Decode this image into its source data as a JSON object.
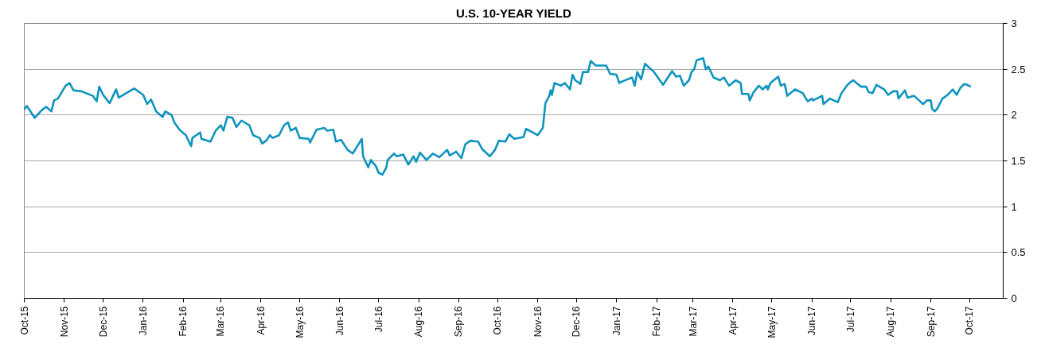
{
  "chart_data": {
    "type": "line",
    "title": "U.S. 10-YEAR YIELD",
    "x": [
      "2015-10-01",
      "2015-10-03",
      "2015-10-09",
      "2015-10-15",
      "2015-10-18",
      "2015-10-22",
      "2015-10-24",
      "2015-10-27",
      "2015-11-02",
      "2015-11-05",
      "2015-11-08",
      "2015-11-14",
      "2015-11-23",
      "2015-11-26",
      "2015-11-28",
      "2015-12-01",
      "2015-12-06",
      "2015-12-11",
      "2015-12-13",
      "2015-12-19",
      "2015-12-25",
      "2016-01-01",
      "2016-01-04",
      "2016-01-07",
      "2016-01-11",
      "2016-01-16",
      "2016-01-18",
      "2016-01-23",
      "2016-01-25",
      "2016-01-29",
      "2016-02-03",
      "2016-02-07",
      "2016-02-08",
      "2016-02-14",
      "2016-02-15",
      "2016-02-22",
      "2016-02-26",
      "2016-03-01",
      "2016-03-03",
      "2016-03-06",
      "2016-03-10",
      "2016-03-13",
      "2016-03-17",
      "2016-03-23",
      "2016-03-26",
      "2016-03-31",
      "2016-04-02",
      "2016-04-05",
      "2016-04-08",
      "2016-04-10",
      "2016-04-15",
      "2016-04-19",
      "2016-04-22",
      "2016-04-24",
      "2016-04-28",
      "2016-05-01",
      "2016-05-08",
      "2016-05-09",
      "2016-05-14",
      "2016-05-20",
      "2016-05-22",
      "2016-05-27",
      "2016-05-29",
      "2016-06-02",
      "2016-06-07",
      "2016-06-11",
      "2016-06-18",
      "2016-06-19",
      "2016-06-23",
      "2016-06-25",
      "2016-06-29",
      "2016-07-01",
      "2016-07-04",
      "2016-07-07",
      "2016-07-08",
      "2016-07-13",
      "2016-07-15",
      "2016-07-20",
      "2016-07-24",
      "2016-07-28",
      "2016-07-30",
      "2016-08-02",
      "2016-08-07",
      "2016-08-12",
      "2016-08-17",
      "2016-08-23",
      "2016-08-25",
      "2016-08-30",
      "2016-09-03",
      "2016-09-06",
      "2016-09-10",
      "2016-09-16",
      "2016-09-19",
      "2016-09-25",
      "2016-09-29",
      "2016-10-02",
      "2016-10-07",
      "2016-10-10",
      "2016-10-14",
      "2016-10-21",
      "2016-10-23",
      "2016-11-01",
      "2016-11-05",
      "2016-11-07",
      "2016-11-10",
      "2016-11-11",
      "2016-11-12",
      "2016-11-14",
      "2016-11-19",
      "2016-11-22",
      "2016-11-26",
      "2016-11-28",
      "2016-11-30",
      "2016-12-04",
      "2016-12-06",
      "2016-12-10",
      "2016-12-12",
      "2016-12-16",
      "2016-12-24",
      "2016-12-27",
      "2017-01-01",
      "2017-01-03",
      "2017-01-06",
      "2017-01-13",
      "2017-01-15",
      "2017-01-17",
      "2017-01-20",
      "2017-01-23",
      "2017-01-30",
      "2017-02-06",
      "2017-02-13",
      "2017-02-16",
      "2017-02-19",
      "2017-02-22",
      "2017-02-26",
      "2017-02-28",
      "2017-03-02",
      "2017-03-04",
      "2017-03-09",
      "2017-03-11",
      "2017-03-13",
      "2017-03-17",
      "2017-03-22",
      "2017-03-25",
      "2017-03-29",
      "2017-04-03",
      "2017-04-07",
      "2017-04-08",
      "2017-04-13",
      "2017-04-14",
      "2017-04-17",
      "2017-04-21",
      "2017-04-24",
      "2017-04-27",
      "2017-04-28",
      "2017-04-30",
      "2017-05-06",
      "2017-05-08",
      "2017-05-11",
      "2017-05-13",
      "2017-05-19",
      "2017-05-25",
      "2017-05-27",
      "2017-05-29",
      "2017-06-01",
      "2017-06-02",
      "2017-06-09",
      "2017-06-10",
      "2017-06-15",
      "2017-06-21",
      "2017-06-24",
      "2017-06-28",
      "2017-07-01",
      "2017-07-03",
      "2017-07-09",
      "2017-07-13",
      "2017-07-15",
      "2017-07-18",
      "2017-07-21",
      "2017-07-27",
      "2017-07-30",
      "2017-08-03",
      "2017-08-06",
      "2017-08-07",
      "2017-08-12",
      "2017-08-14",
      "2017-08-19",
      "2017-08-23",
      "2017-08-26",
      "2017-08-29",
      "2017-09-01",
      "2017-09-02",
      "2017-09-04",
      "2017-09-06",
      "2017-09-10",
      "2017-09-14",
      "2017-09-18",
      "2017-09-21",
      "2017-09-24",
      "2017-09-27",
      "2017-09-29",
      "2017-10-02"
    ],
    "series": [
      {
        "color": "#0f94bd",
        "values": [
          2.06,
          2.1,
          1.97,
          2.06,
          2.09,
          2.04,
          2.16,
          2.18,
          2.32,
          2.35,
          2.27,
          2.26,
          2.21,
          2.15,
          2.31,
          2.22,
          2.13,
          2.28,
          2.19,
          2.24,
          2.29,
          2.22,
          2.12,
          2.17,
          2.04,
          1.98,
          2.04,
          2.0,
          1.92,
          1.84,
          1.78,
          1.66,
          1.75,
          1.81,
          1.74,
          1.71,
          1.83,
          1.89,
          1.83,
          1.98,
          1.97,
          1.87,
          1.94,
          1.89,
          1.78,
          1.75,
          1.69,
          1.72,
          1.78,
          1.75,
          1.78,
          1.89,
          1.92,
          1.83,
          1.86,
          1.75,
          1.74,
          1.7,
          1.84,
          1.86,
          1.83,
          1.84,
          1.71,
          1.73,
          1.62,
          1.58,
          1.74,
          1.55,
          1.43,
          1.51,
          1.44,
          1.37,
          1.35,
          1.43,
          1.51,
          1.58,
          1.55,
          1.57,
          1.46,
          1.55,
          1.49,
          1.59,
          1.51,
          1.58,
          1.54,
          1.62,
          1.56,
          1.6,
          1.53,
          1.68,
          1.72,
          1.71,
          1.63,
          1.55,
          1.62,
          1.72,
          1.71,
          1.79,
          1.74,
          1.76,
          1.85,
          1.78,
          1.86,
          2.13,
          2.21,
          2.27,
          2.22,
          2.35,
          2.32,
          2.35,
          2.28,
          2.44,
          2.38,
          2.34,
          2.47,
          2.47,
          2.59,
          2.54,
          2.54,
          2.45,
          2.44,
          2.35,
          2.37,
          2.41,
          2.32,
          2.47,
          2.39,
          2.56,
          2.47,
          2.33,
          2.48,
          2.42,
          2.43,
          2.32,
          2.38,
          2.47,
          2.5,
          2.6,
          2.62,
          2.5,
          2.53,
          2.41,
          2.38,
          2.41,
          2.32,
          2.38,
          2.35,
          2.23,
          2.23,
          2.16,
          2.25,
          2.32,
          2.28,
          2.32,
          2.28,
          2.35,
          2.42,
          2.32,
          2.34,
          2.21,
          2.28,
          2.24,
          2.19,
          2.15,
          2.18,
          2.16,
          2.21,
          2.12,
          2.18,
          2.14,
          2.24,
          2.32,
          2.36,
          2.38,
          2.31,
          2.31,
          2.25,
          2.24,
          2.33,
          2.28,
          2.22,
          2.26,
          2.26,
          2.18,
          2.27,
          2.19,
          2.21,
          2.16,
          2.12,
          2.16,
          2.16,
          2.07,
          2.04,
          2.07,
          2.18,
          2.22,
          2.28,
          2.22,
          2.3,
          2.34,
          2.33,
          2.31
        ]
      }
    ],
    "xlim": [
      "2015-10-01",
      "2017-10-27"
    ],
    "xticks": [
      {
        "value": "2015-10-01",
        "label": "Oct-15"
      },
      {
        "value": "2015-11-01",
        "label": "Nov-15"
      },
      {
        "value": "2015-12-01",
        "label": "Dec-15"
      },
      {
        "value": "2016-01-01",
        "label": "Jan-16"
      },
      {
        "value": "2016-02-01",
        "label": "Feb-16"
      },
      {
        "value": "2016-03-01",
        "label": "Mar-16"
      },
      {
        "value": "2016-04-01",
        "label": "Apr-16"
      },
      {
        "value": "2016-05-01",
        "label": "May-16"
      },
      {
        "value": "2016-06-01",
        "label": "Jun-16"
      },
      {
        "value": "2016-07-01",
        "label": "Jul-16"
      },
      {
        "value": "2016-08-01",
        "label": "Aug-16"
      },
      {
        "value": "2016-09-01",
        "label": "Sep-16"
      },
      {
        "value": "2016-10-01",
        "label": "Oct-16"
      },
      {
        "value": "2016-11-01",
        "label": "Nov-16"
      },
      {
        "value": "2016-12-01",
        "label": "Dec-16"
      },
      {
        "value": "2017-01-01",
        "label": "Jan-17"
      },
      {
        "value": "2017-02-01",
        "label": "Feb-17"
      },
      {
        "value": "2017-03-01",
        "label": "Mar-17"
      },
      {
        "value": "2017-04-01",
        "label": "Apr-17"
      },
      {
        "value": "2017-05-01",
        "label": "May-17"
      },
      {
        "value": "2017-06-01",
        "label": "Jun-17"
      },
      {
        "value": "2017-07-01",
        "label": "Jul-17"
      },
      {
        "value": "2017-08-01",
        "label": "Aug-17"
      },
      {
        "value": "2017-09-01",
        "label": "Sep-17"
      },
      {
        "value": "2017-10-01",
        "label": "Oct-17"
      }
    ],
    "ylim": [
      0,
      3
    ],
    "yticks": [
      0,
      0.5,
      1,
      1.5,
      2,
      2.5,
      3
    ],
    "grid": "y",
    "line_style": "solid"
  }
}
